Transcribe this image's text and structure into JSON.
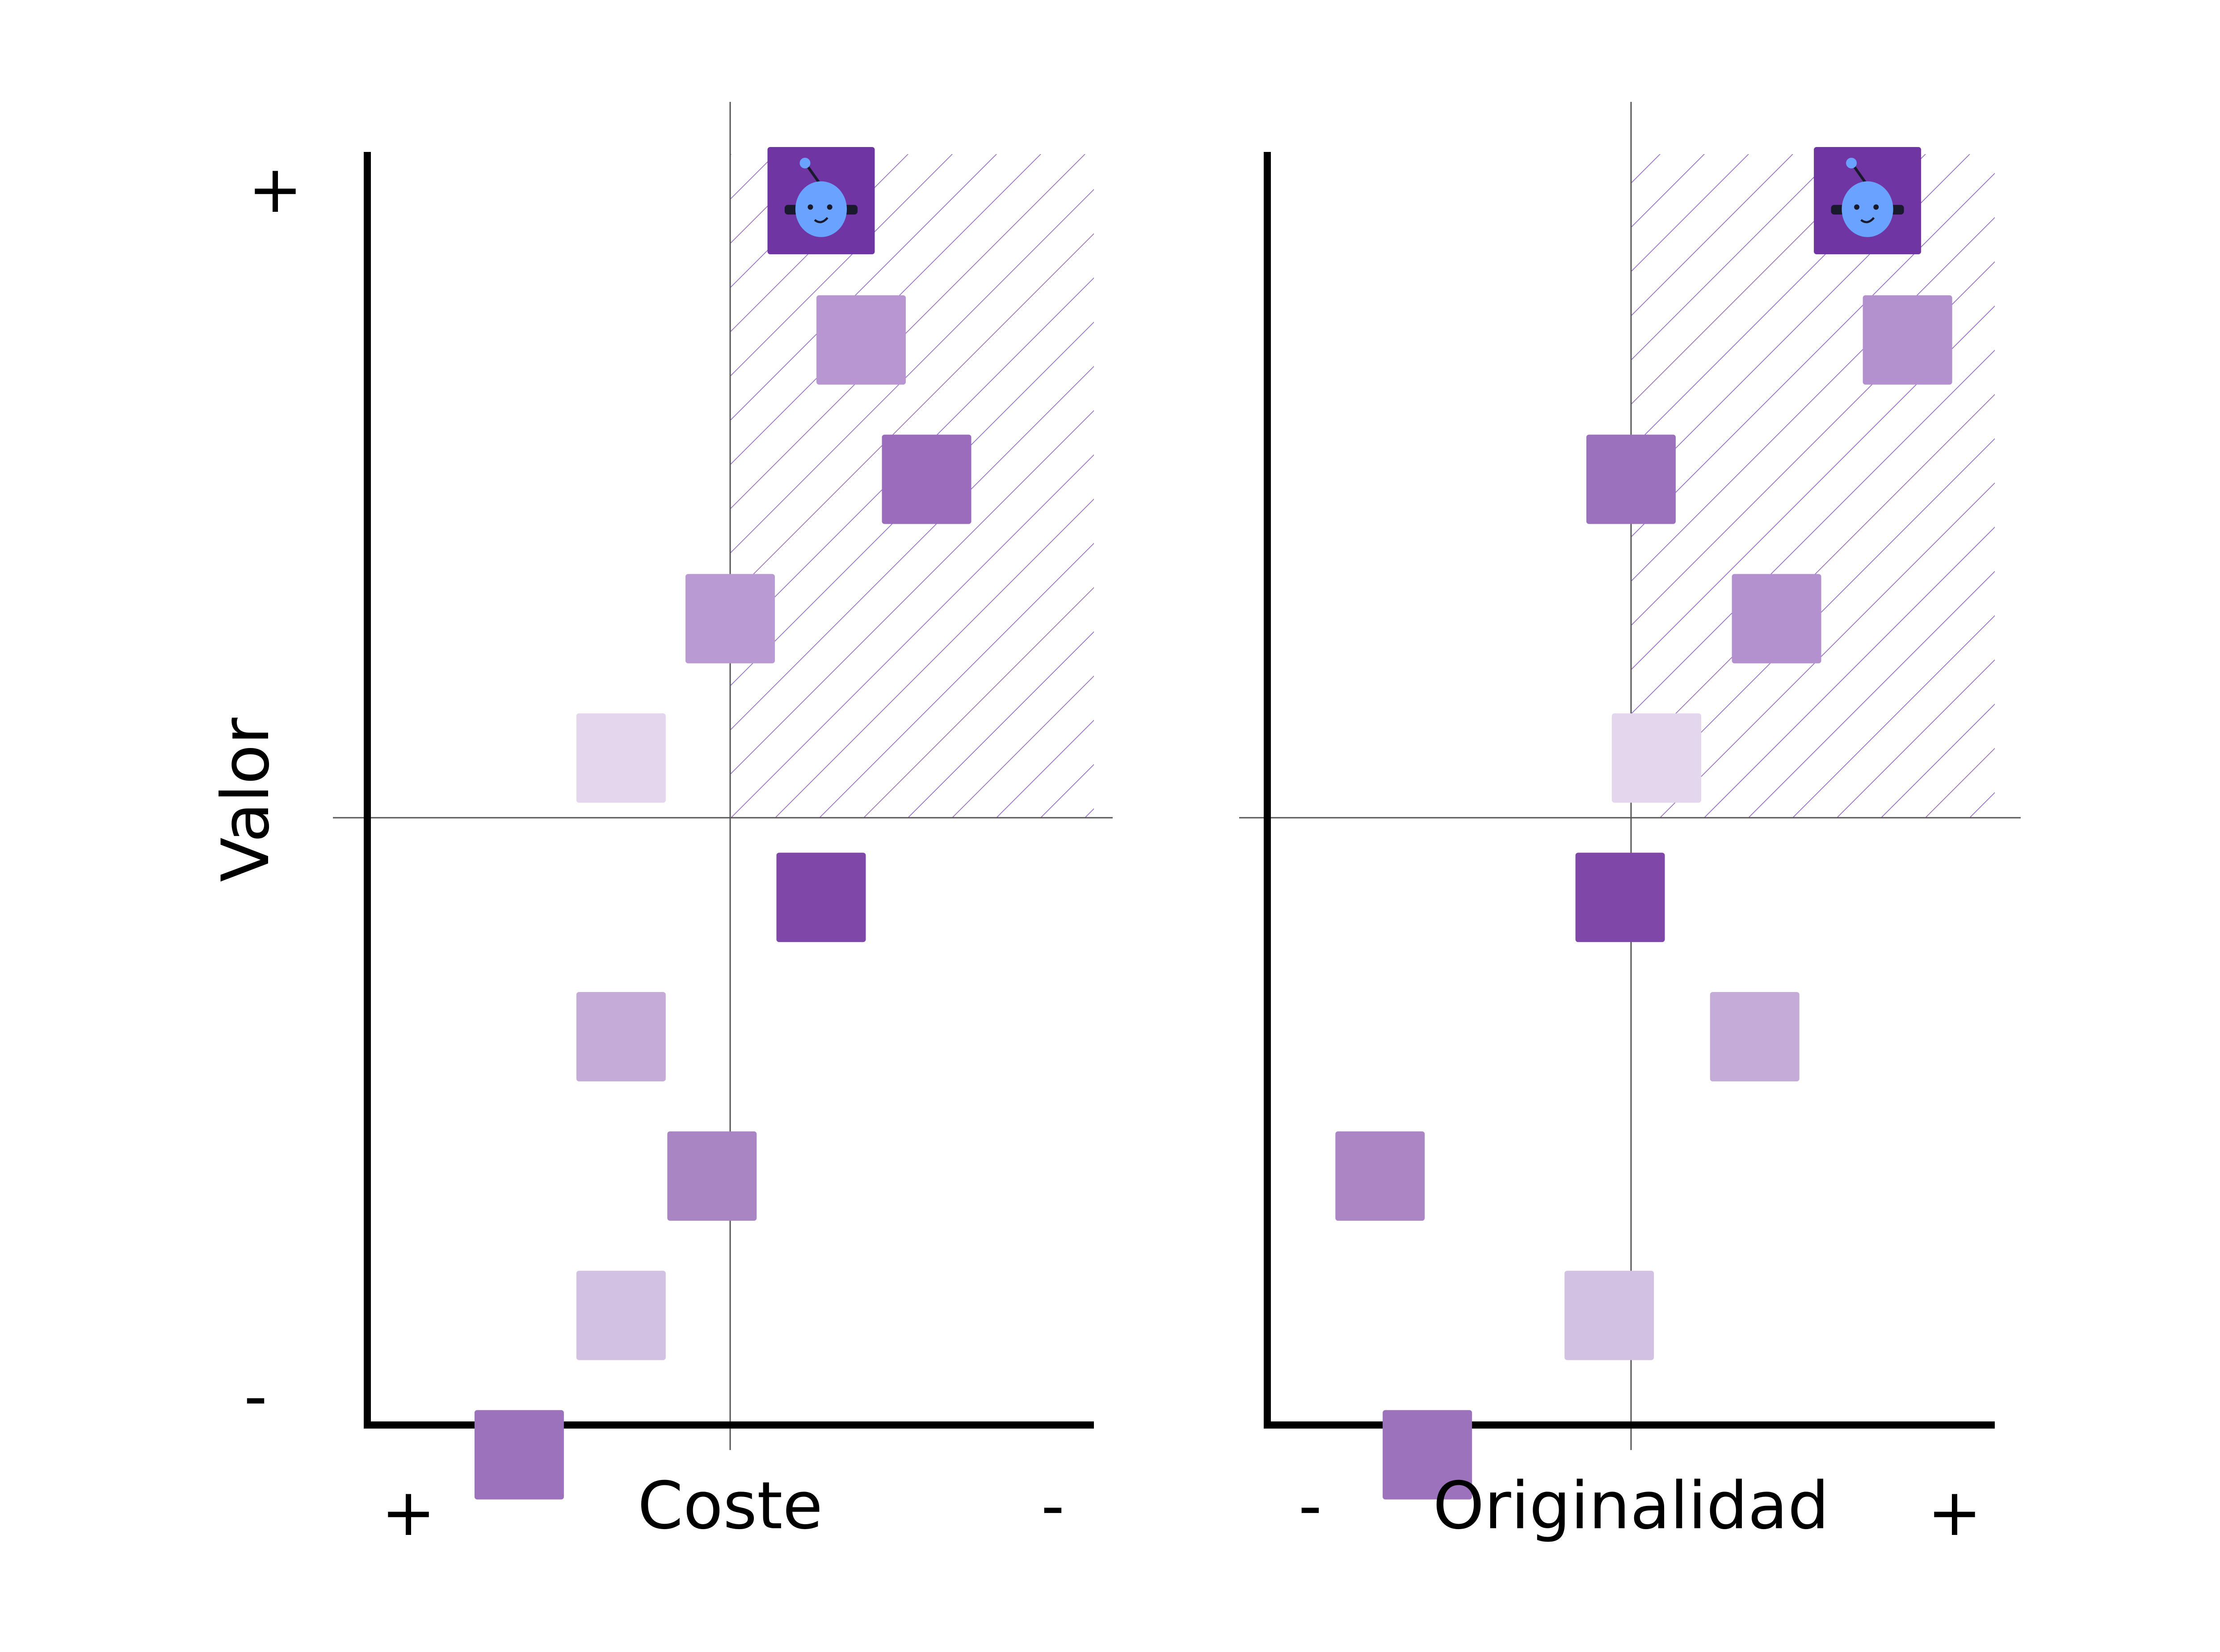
{
  "y_axis": {
    "label": "Valor",
    "plus": "+",
    "minus": "-"
  },
  "colors": {
    "axis": "#000000",
    "divider": "#555555",
    "hatch": "#8a5cc0",
    "robot_tile": "#6f35a2",
    "robot_face": "#6aa3ff",
    "robot_feature": "#1a1a2e"
  },
  "icons": {
    "favorite": "robot-face-icon"
  },
  "charts": [
    {
      "id": "coste",
      "x_label": "Coste",
      "x_left_sign": "+",
      "x_right_sign": "-",
      "favorite_index": 0,
      "points": [
        {
          "x": 0.25,
          "y": 0.93,
          "color": "#6f35a2"
        },
        {
          "x": 0.36,
          "y": 0.72,
          "color": "#b796d1"
        },
        {
          "x": 0.54,
          "y": 0.51,
          "color": "#9b6cbc"
        },
        {
          "x": 0.0,
          "y": 0.3,
          "color": "#b99ad2"
        },
        {
          "x": -0.3,
          "y": 0.09,
          "color": "#e3d6ed"
        },
        {
          "x": 0.25,
          "y": -0.12,
          "color": "#7f47a8"
        },
        {
          "x": -0.3,
          "y": -0.33,
          "color": "#c4abd8"
        },
        {
          "x": -0.05,
          "y": -0.54,
          "color": "#a985c4"
        },
        {
          "x": -0.3,
          "y": -0.75,
          "color": "#d3c1e3"
        },
        {
          "x": -0.58,
          "y": -0.96,
          "color": "#9d72bd"
        }
      ]
    },
    {
      "id": "originalidad",
      "x_label": "Originalidad",
      "x_left_sign": "-",
      "x_right_sign": "+",
      "favorite_index": 0,
      "points": [
        {
          "x": 0.65,
          "y": 0.93,
          "color": "#6f35a2"
        },
        {
          "x": 0.76,
          "y": 0.72,
          "color": "#b391cf"
        },
        {
          "x": 0.0,
          "y": 0.51,
          "color": "#9b70bc"
        },
        {
          "x": 0.4,
          "y": 0.3,
          "color": "#b391cf"
        },
        {
          "x": 0.07,
          "y": 0.09,
          "color": "#e3d6ed"
        },
        {
          "x": -0.03,
          "y": -0.12,
          "color": "#7f47a8"
        },
        {
          "x": 0.34,
          "y": -0.33,
          "color": "#c4abd8"
        },
        {
          "x": -0.69,
          "y": -0.54,
          "color": "#ac86c4"
        },
        {
          "x": -0.06,
          "y": -0.75,
          "color": "#d3c1e3"
        },
        {
          "x": -0.56,
          "y": -0.96,
          "color": "#9d72bd"
        }
      ]
    }
  ]
}
